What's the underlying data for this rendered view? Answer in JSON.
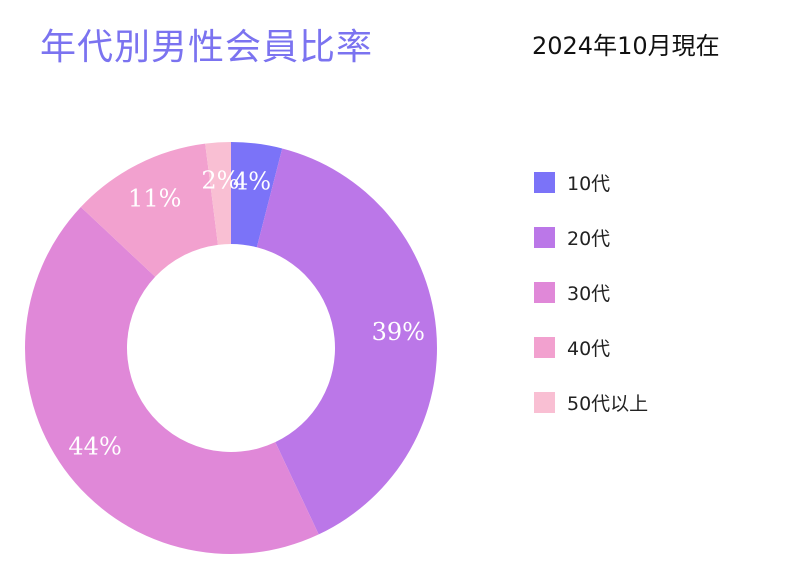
{
  "chart_data": {
    "type": "pie",
    "title": "年代別男性会員比率",
    "subtitle": "2024年10月現在",
    "legend_position": "right",
    "slices": [
      {
        "label": "10代",
        "value": 4,
        "display": "4%",
        "color": "#7b73f8"
      },
      {
        "label": "20代",
        "value": 39,
        "display": "39%",
        "color": "#bb77e8"
      },
      {
        "label": "30代",
        "value": 44,
        "display": "44%",
        "color": "#e088d8"
      },
      {
        "label": "40代",
        "value": 11,
        "display": "11%",
        "color": "#f2a1cf"
      },
      {
        "label": "50代以上",
        "value": 2,
        "display": "2%",
        "color": "#f9bfd3"
      }
    ]
  }
}
